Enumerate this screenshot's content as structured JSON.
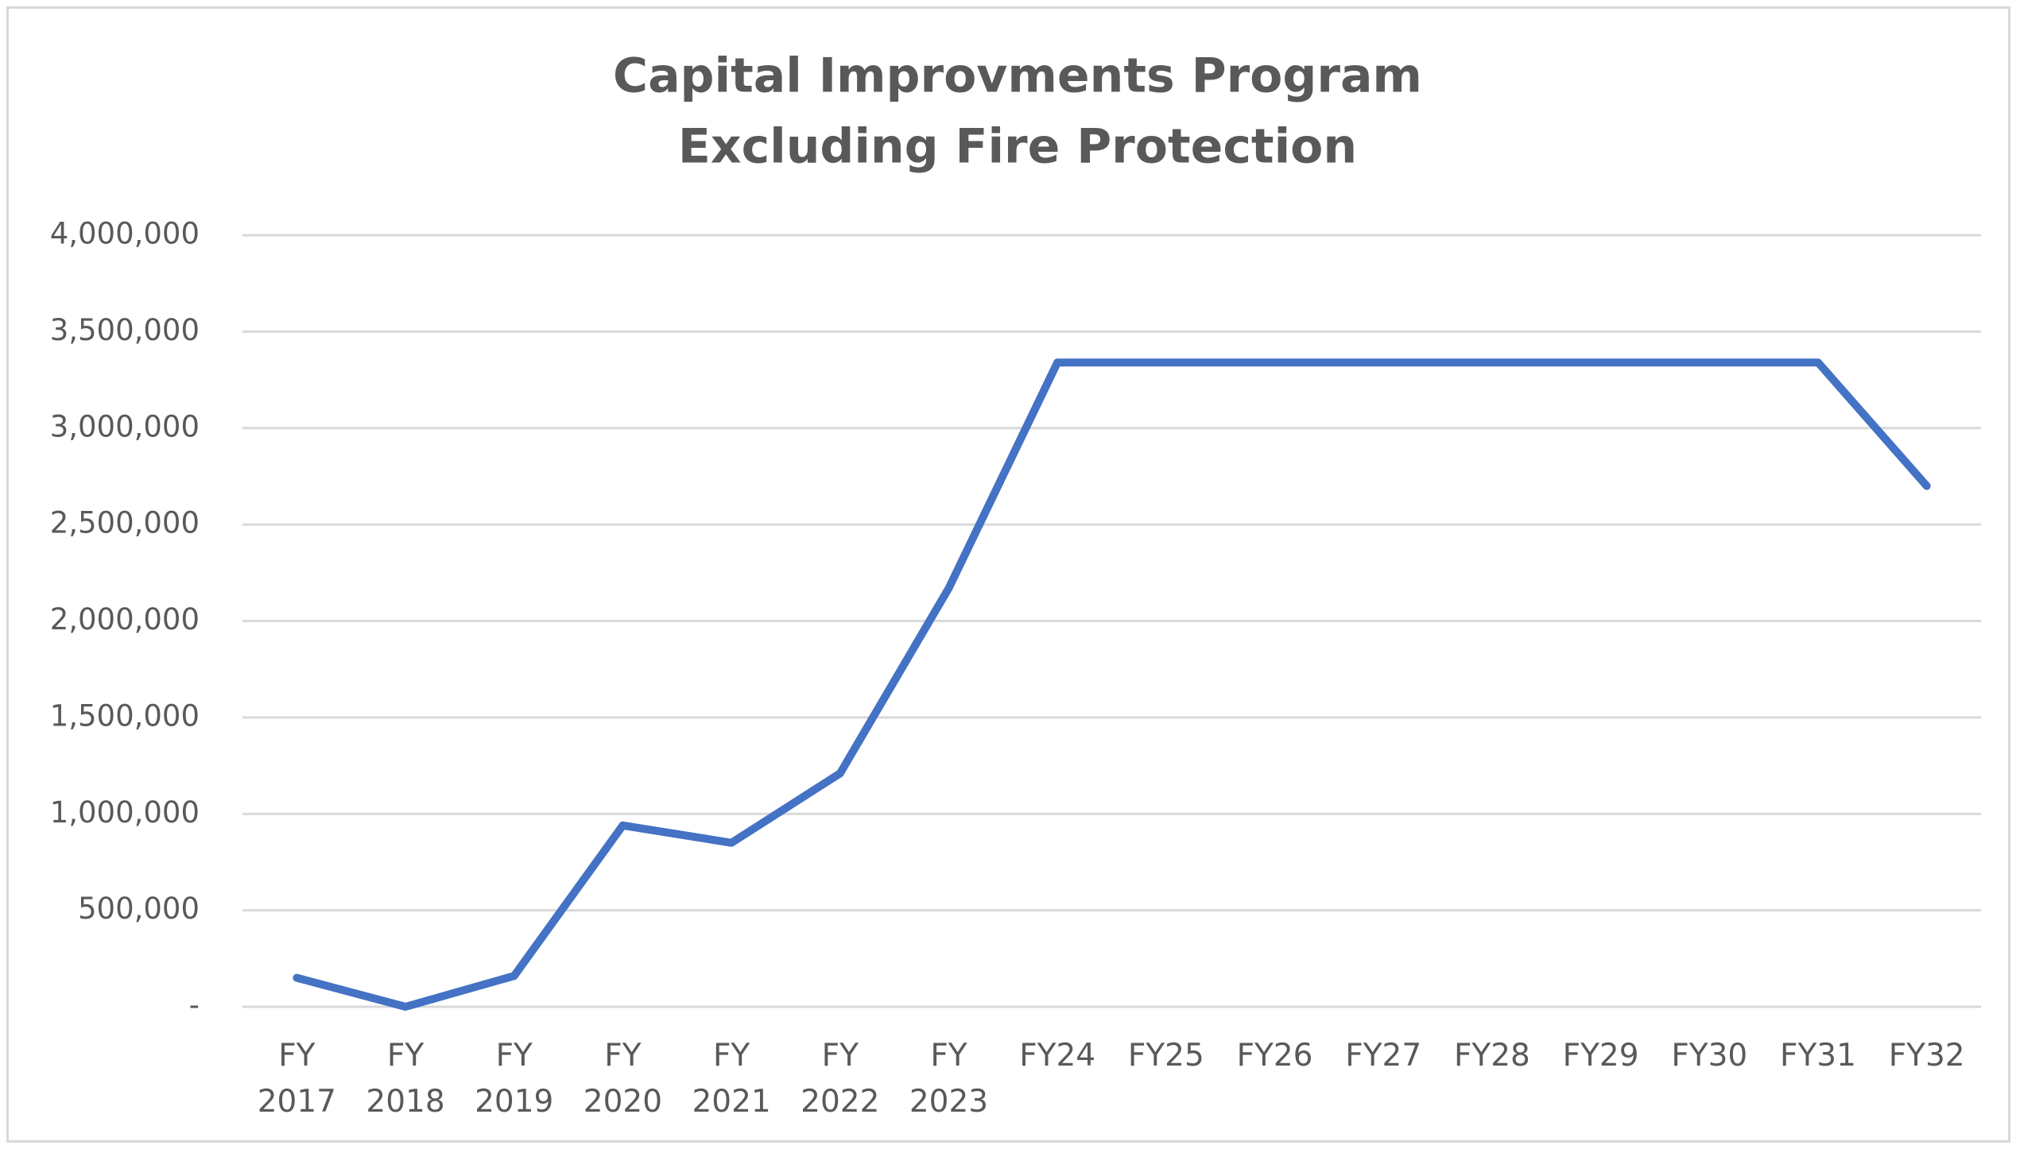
{
  "chart_data": {
    "type": "line",
    "title": "Capital Improvments Program",
    "subtitle": "Excluding Fire Protection",
    "categories": [
      "FY 2017",
      "FY 2018",
      "FY 2019",
      "FY 2020",
      "FY 2021",
      "FY 2022",
      "FY 2023",
      "FY24",
      "FY25",
      "FY26",
      "FY27",
      "FY28",
      "FY29",
      "FY30",
      "FY31",
      "FY32"
    ],
    "series": [
      {
        "color": "#4472c4",
        "values": [
          150000,
          0,
          160000,
          940000,
          850000,
          1210000,
          2170000,
          3340000,
          3340000,
          3340000,
          3340000,
          3340000,
          3340000,
          3340000,
          3340000,
          2700000
        ]
      }
    ],
    "ylim": [
      0,
      4000000
    ],
    "yticks": [
      {
        "value": 0,
        "label": "-"
      },
      {
        "value": 500000,
        "label": "500,000"
      },
      {
        "value": 1000000,
        "label": "1,000,000"
      },
      {
        "value": 1500000,
        "label": "1,500,000"
      },
      {
        "value": 2000000,
        "label": "2,000,000"
      },
      {
        "value": 2500000,
        "label": "2,500,000"
      },
      {
        "value": 3000000,
        "label": "3,000,000"
      },
      {
        "value": 3500000,
        "label": "3,500,000"
      },
      {
        "value": 4000000,
        "label": "4,000,000"
      }
    ],
    "grid": true
  }
}
